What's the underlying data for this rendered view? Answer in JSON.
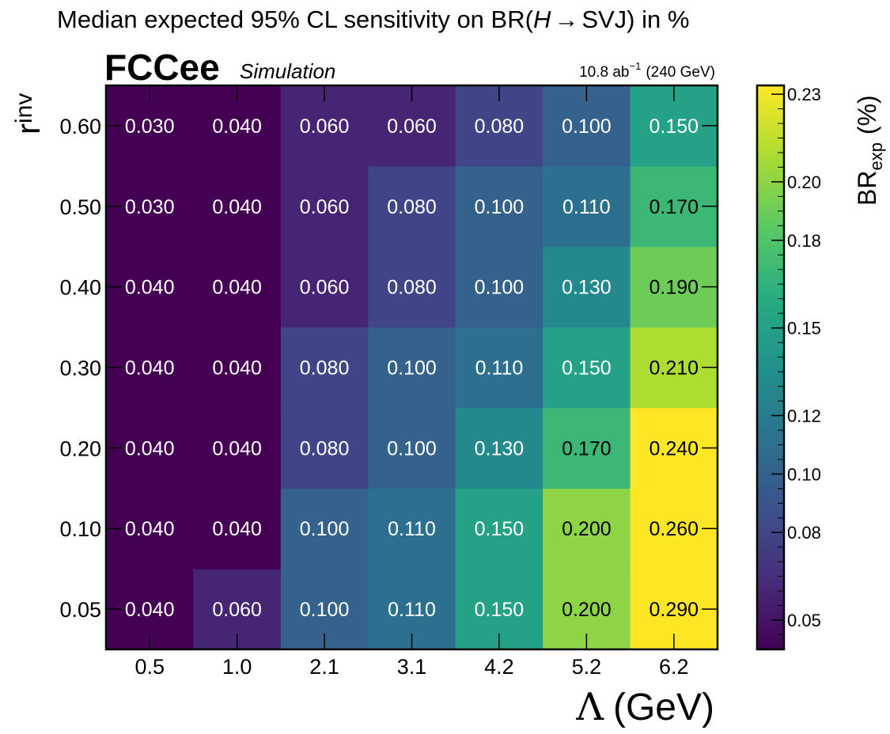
{
  "chart_data": {
    "type": "heatmap",
    "title_prefix": "Median expected 95% CL sensitivity on BR(",
    "title_h": "H",
    "title_arrow": "→",
    "title_suffix": "SVJ) in %",
    "experiment": "FCCee",
    "experiment_tag": "Simulation",
    "lumi_value": "10.8 ab",
    "lumi_exp": "−1",
    "lumi_energy": "(240 GeV)",
    "xlabel_symbol": "Λ",
    "xlabel_unit": "(GeV)",
    "ylabel_main": "r",
    "ylabel_sub": "inv",
    "zlabel_main": "BR",
    "zlabel_sub": "exp",
    "zlabel_unit": "(%)",
    "x_categories": [
      "0.5",
      "1.0",
      "2.1",
      "3.1",
      "4.2",
      "5.2",
      "6.2"
    ],
    "y_categories": [
      "0.05",
      "0.10",
      "0.20",
      "0.30",
      "0.40",
      "0.50",
      "0.60"
    ],
    "values": [
      [
        0.04,
        0.06,
        0.1,
        0.11,
        0.15,
        0.2,
        0.29
      ],
      [
        0.04,
        0.04,
        0.1,
        0.11,
        0.15,
        0.2,
        0.26
      ],
      [
        0.04,
        0.04,
        0.08,
        0.1,
        0.13,
        0.17,
        0.24
      ],
      [
        0.04,
        0.04,
        0.08,
        0.1,
        0.11,
        0.15,
        0.21
      ],
      [
        0.04,
        0.04,
        0.06,
        0.08,
        0.1,
        0.13,
        0.19
      ],
      [
        0.03,
        0.04,
        0.06,
        0.08,
        0.1,
        0.11,
        0.17
      ],
      [
        0.03,
        0.04,
        0.06,
        0.06,
        0.08,
        0.1,
        0.15
      ]
    ],
    "cell_labels": [
      [
        "0.040",
        "0.060",
        "0.100",
        "0.110",
        "0.150",
        "0.200",
        "0.290"
      ],
      [
        "0.040",
        "0.040",
        "0.100",
        "0.110",
        "0.150",
        "0.200",
        "0.260"
      ],
      [
        "0.040",
        "0.040",
        "0.080",
        "0.100",
        "0.130",
        "0.170",
        "0.240"
      ],
      [
        "0.040",
        "0.040",
        "0.080",
        "0.100",
        "0.110",
        "0.150",
        "0.210"
      ],
      [
        "0.040",
        "0.040",
        "0.060",
        "0.080",
        "0.100",
        "0.130",
        "0.190"
      ],
      [
        "0.030",
        "0.040",
        "0.060",
        "0.080",
        "0.100",
        "0.110",
        "0.170"
      ],
      [
        "0.030",
        "0.040",
        "0.060",
        "0.060",
        "0.080",
        "0.100",
        "0.150"
      ]
    ],
    "zlim": [
      0.04,
      0.233
    ],
    "z_ticks": [
      "0.05",
      "0.08",
      "0.10",
      "0.12",
      "0.15",
      "0.18",
      "0.20",
      "0.23"
    ],
    "colormap": "viridis",
    "text_color_light": "#ffffff",
    "text_color_dark": "#000000",
    "grid": false
  }
}
